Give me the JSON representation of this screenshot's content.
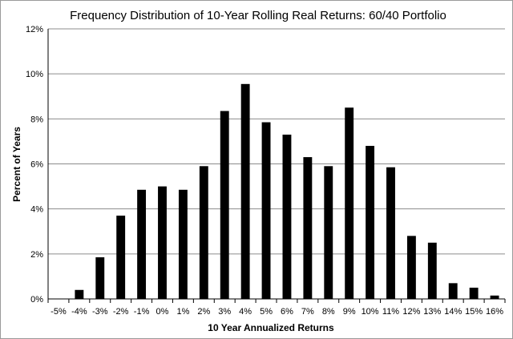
{
  "chart_data": {
    "type": "bar",
    "title": "Frequency Distribution of 10-Year Rolling Real Returns: 60/40 Portfolio",
    "xlabel": "10 Year Annualized Returns",
    "ylabel": "Percent of Years",
    "categories": [
      "-5%",
      "-4%",
      "-3%",
      "-2%",
      "-1%",
      "0%",
      "1%",
      "2%",
      "3%",
      "4%",
      "5%",
      "6%",
      "7%",
      "8%",
      "9%",
      "10%",
      "11%",
      "12%",
      "13%",
      "14%",
      "15%",
      "16%"
    ],
    "values": [
      0,
      0.4,
      1.85,
      3.7,
      4.85,
      5.0,
      4.85,
      5.9,
      8.35,
      9.55,
      7.85,
      7.3,
      6.3,
      5.9,
      8.5,
      6.8,
      5.85,
      2.8,
      2.5,
      0.7,
      0.5,
      0.15
    ],
    "ylim": [
      0,
      12
    ],
    "yticks": [
      "0%",
      "2%",
      "4%",
      "6%",
      "8%",
      "10%",
      "12%"
    ],
    "ytick_values": [
      0,
      2,
      4,
      6,
      8,
      10,
      12
    ],
    "grid": true,
    "legend": "none",
    "bar_color": "#000000",
    "grid_color": "#8c8c8c"
  }
}
